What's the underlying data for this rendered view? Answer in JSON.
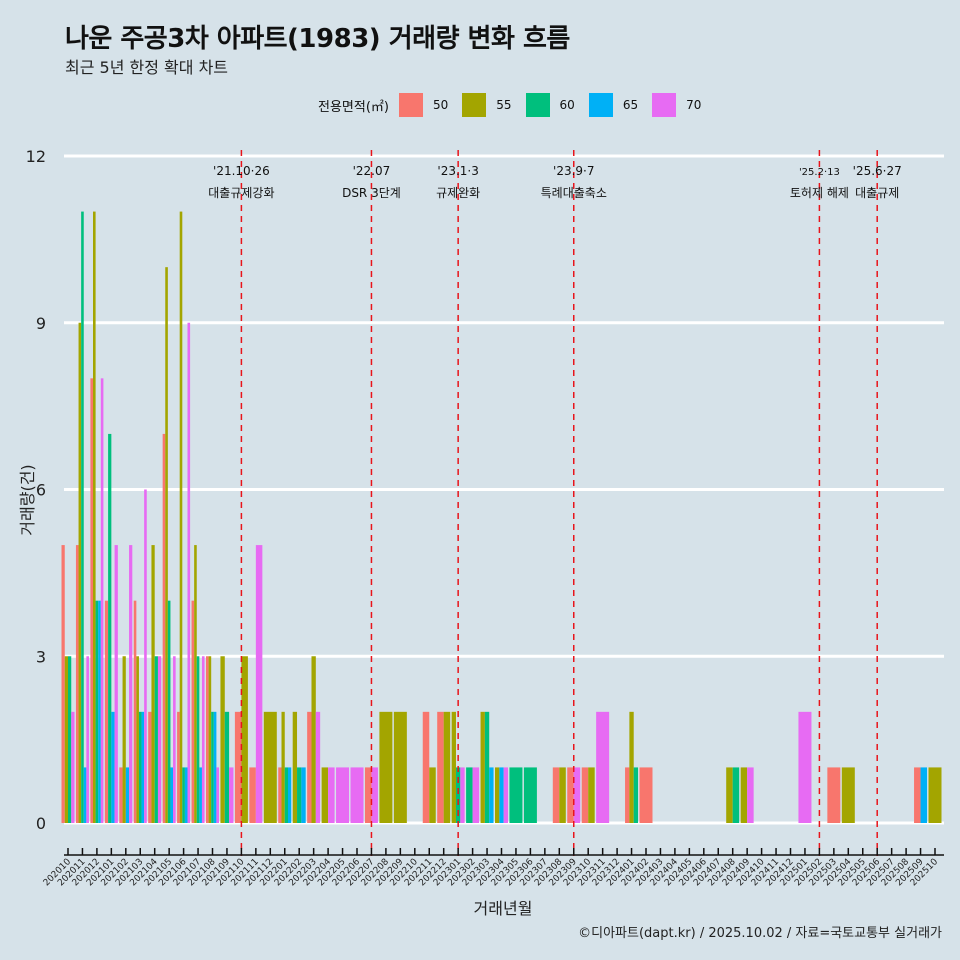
{
  "header": {
    "title": "나운 주공3차 아파트(1983) 거래량 변화 흐름",
    "subtitle": "최근 5년 한정 확대 차트"
  },
  "legend": {
    "title": "전용면적(㎡)",
    "items": [
      {
        "label": "50",
        "color": "#f8766d"
      },
      {
        "label": "55",
        "color": "#a3a500"
      },
      {
        "label": "60",
        "color": "#00bf7d"
      },
      {
        "label": "65",
        "color": "#00b0f6"
      },
      {
        "label": "70",
        "color": "#e76bf3"
      }
    ]
  },
  "caption": "©디아파트(dapt.kr) / 2025.10.02 / 자료=국토교통부 실거래가",
  "chart_data": {
    "type": "bar",
    "title": "나운 주공3차 아파트(1983) 거래량 변화 흐름",
    "subtitle": "최근 5년 한정 확대 차트",
    "xlabel": "거래년월",
    "ylabel": "거래량(건)",
    "ylim": [
      0,
      12
    ],
    "yticks": [
      0,
      3,
      6,
      9,
      12
    ],
    "grid": true,
    "legend_position": "top",
    "categories": [
      "202010",
      "202011",
      "202012",
      "202101",
      "202102",
      "202103",
      "202104",
      "202105",
      "202106",
      "202107",
      "202108",
      "202109",
      "202110",
      "202111",
      "202112",
      "202201",
      "202202",
      "202203",
      "202204",
      "202205",
      "202206",
      "202207",
      "202208",
      "202209",
      "202210",
      "202211",
      "202212",
      "202301",
      "202302",
      "202303",
      "202304",
      "202305",
      "202306",
      "202307",
      "202308",
      "202309",
      "202310",
      "202311",
      "202312",
      "202401",
      "202402",
      "202403",
      "202404",
      "202405",
      "202406",
      "202407",
      "202408",
      "202409",
      "202410",
      "202411",
      "202412",
      "202501",
      "202502",
      "202503",
      "202504",
      "202505",
      "202506",
      "202507",
      "202508",
      "202509",
      "202510"
    ],
    "series": [
      {
        "name": "50",
        "values": [
          5,
          5,
          8,
          4,
          1,
          4,
          2,
          7,
          2,
          4,
          3,
          0,
          2,
          1,
          0,
          1,
          0,
          2,
          0,
          0,
          0,
          1,
          0,
          0,
          0,
          2,
          2,
          0,
          0,
          0,
          0,
          0,
          0,
          0,
          1,
          1,
          1,
          0,
          0,
          1,
          1,
          0,
          0,
          0,
          0,
          0,
          0,
          0,
          0,
          0,
          0,
          0,
          0,
          1,
          0,
          0,
          0,
          0,
          0,
          1,
          0
        ]
      },
      {
        "name": "55",
        "values": [
          3,
          9,
          11,
          0,
          3,
          3,
          5,
          10,
          11,
          5,
          3,
          3,
          3,
          0,
          2,
          2,
          2,
          3,
          1,
          0,
          0,
          0,
          2,
          2,
          0,
          1,
          2,
          2,
          0,
          2,
          1,
          0,
          0,
          0,
          1,
          0,
          1,
          0,
          0,
          2,
          0,
          0,
          0,
          0,
          0,
          0,
          1,
          1,
          0,
          0,
          0,
          0,
          0,
          0,
          1,
          0,
          0,
          0,
          0,
          0,
          1
        ]
      },
      {
        "name": "60",
        "values": [
          3,
          11,
          4,
          7,
          0,
          2,
          3,
          4,
          1,
          3,
          2,
          2,
          0,
          0,
          0,
          1,
          1,
          0,
          0,
          0,
          0,
          0,
          0,
          0,
          0,
          0,
          0,
          1,
          1,
          2,
          0,
          1,
          1,
          0,
          0,
          0,
          0,
          0,
          0,
          1,
          0,
          0,
          0,
          0,
          0,
          0,
          1,
          0,
          0,
          0,
          0,
          0,
          0,
          0,
          0,
          0,
          0,
          0,
          0,
          0,
          0
        ]
      },
      {
        "name": "65",
        "values": [
          0,
          1,
          4,
          2,
          1,
          2,
          0,
          1,
          1,
          1,
          2,
          0,
          0,
          0,
          0,
          1,
          1,
          0,
          0,
          0,
          0,
          0,
          0,
          0,
          0,
          0,
          0,
          0,
          0,
          1,
          1,
          0,
          0,
          0,
          0,
          0,
          0,
          0,
          0,
          0,
          0,
          0,
          0,
          0,
          0,
          0,
          0,
          0,
          0,
          0,
          0,
          0,
          0,
          0,
          0,
          0,
          0,
          0,
          0,
          1,
          0
        ]
      },
      {
        "name": "70",
        "values": [
          2,
          3,
          8,
          5,
          5,
          6,
          3,
          3,
          9,
          3,
          1,
          1,
          0,
          5,
          0,
          0,
          0,
          2,
          1,
          1,
          1,
          1,
          0,
          0,
          0,
          0,
          0,
          1,
          1,
          0,
          1,
          0,
          0,
          0,
          0,
          1,
          0,
          2,
          0,
          0,
          0,
          0,
          0,
          0,
          0,
          0,
          0,
          1,
          0,
          0,
          0,
          2,
          0,
          0,
          0,
          0,
          0,
          0,
          0,
          0,
          0
        ]
      }
    ],
    "annotations": [
      {
        "date": "202110",
        "line1": "'21.10·26",
        "line2": "대출규제강화"
      },
      {
        "date": "202207",
        "line1": "'22.07",
        "line2": "DSR 3단계"
      },
      {
        "date": "202301",
        "line1": "'23.1·3",
        "line2": "규제완화"
      },
      {
        "date": "202309",
        "line1": "'23.9·7",
        "line2": "특례대출축소"
      },
      {
        "date": "202502",
        "line1": "'25.2·13",
        "line2": "토허제 해제"
      },
      {
        "date": "202506",
        "line1": "'25.6·27",
        "line2": "대출규제"
      }
    ]
  }
}
